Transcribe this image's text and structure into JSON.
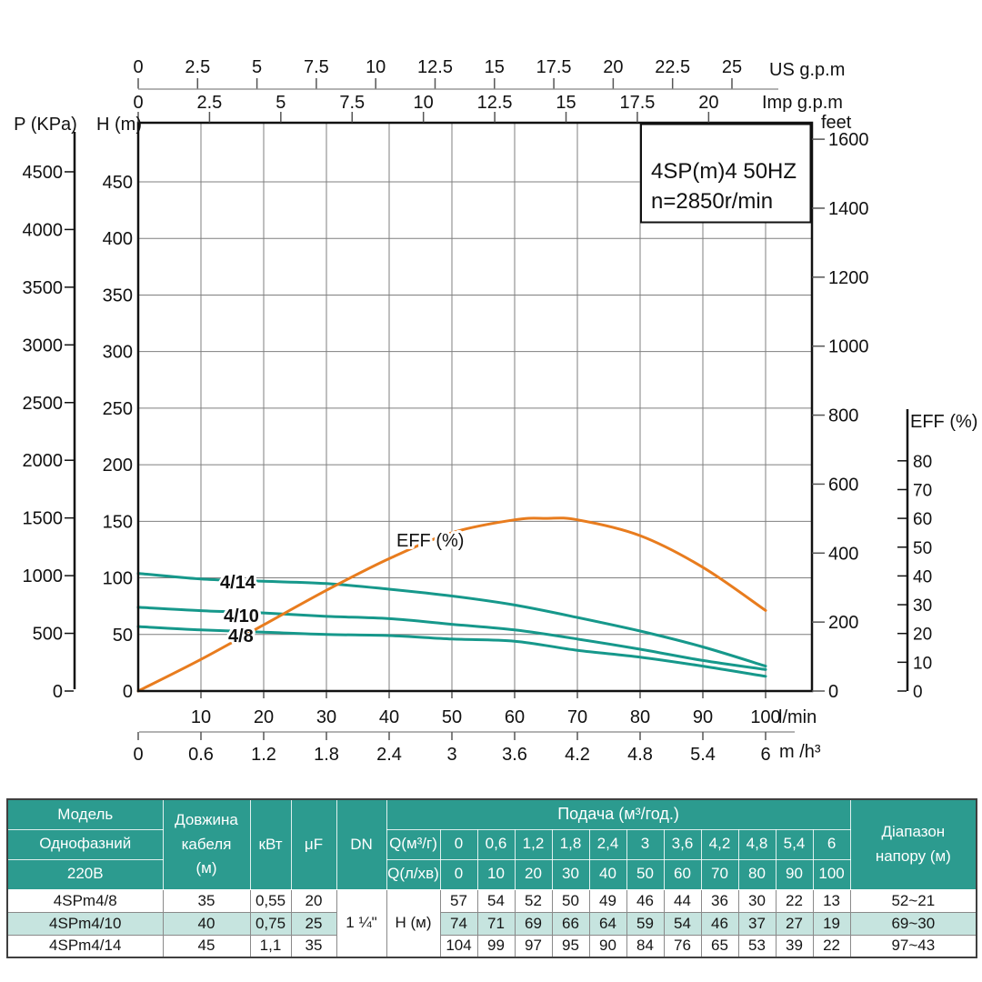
{
  "chart_data": {
    "type": "line",
    "title": "4SP(m)4  50HZ",
    "subtitle": "n=2850r/min",
    "x": [
      0,
      10,
      20,
      30,
      40,
      50,
      60,
      70,
      80,
      90,
      100
    ],
    "xlim": [
      0,
      100
    ],
    "ylim": [
      0,
      450
    ],
    "grid": true,
    "series": [
      {
        "name": "4/14",
        "values": [
          104,
          99,
          97,
          95,
          90,
          84,
          76,
          65,
          53,
          39,
          22
        ]
      },
      {
        "name": "4/10",
        "values": [
          74,
          71,
          69,
          66,
          64,
          59,
          54,
          46,
          37,
          27,
          19
        ]
      },
      {
        "name": "4/8",
        "values": [
          57,
          54,
          52,
          50,
          49,
          46,
          44,
          36,
          30,
          22,
          13
        ]
      }
    ],
    "efficiency": {
      "label": "EFF (%)",
      "x": [
        0,
        10,
        20,
        30,
        40,
        50,
        60,
        65,
        70,
        80,
        90,
        100
      ],
      "values": [
        0,
        11,
        23,
        35,
        46,
        55,
        59.5,
        60,
        59.5,
        54,
        43,
        28
      ]
    },
    "axes": {
      "p": {
        "label": "P (KPa)",
        "ticks": [
          0,
          500,
          1000,
          1500,
          2000,
          2500,
          3000,
          3500,
          4000,
          4500
        ]
      },
      "h": {
        "label": "H (m)",
        "ticks": [
          0,
          50,
          100,
          150,
          200,
          250,
          300,
          350,
          400,
          450
        ]
      },
      "feet": {
        "label": "feet",
        "ticks": [
          0,
          200,
          400,
          600,
          800,
          1000,
          1200,
          1400,
          1600
        ]
      },
      "us_gpm": {
        "label": "US g.p.m",
        "ticks": [
          0,
          2.5,
          5,
          7.5,
          10,
          12.5,
          15,
          17.5,
          20,
          22.5,
          25
        ]
      },
      "imp_gpm": {
        "label": "Imp g.p.m",
        "ticks": [
          0,
          2.5,
          5,
          7.5,
          10,
          12.5,
          15,
          17.5,
          20
        ]
      },
      "lmin": {
        "label": "l/min",
        "ticks": [
          10,
          20,
          30,
          40,
          50,
          60,
          70,
          80,
          90,
          100
        ]
      },
      "m3h": {
        "label": "m /h³",
        "ticks": [
          0,
          0.6,
          1.2,
          1.8,
          2.4,
          3,
          3.6,
          4.2,
          4.8,
          5.4,
          6
        ]
      },
      "eff": {
        "label": "EFF (%)",
        "ticks": [
          0,
          10,
          20,
          30,
          40,
          50,
          60,
          70,
          80
        ]
      }
    },
    "colors": {
      "head_curves": "#16988b",
      "eff_curve": "#e87c1e",
      "grid": "#7f7f7f",
      "axis_light": "#9a9a9a",
      "tick": "#555555",
      "ink": "#111111"
    }
  },
  "table": {
    "header": {
      "model": "Модель",
      "phase": "Однофазний",
      "voltage": "220В",
      "cable_lines": [
        "Довжина",
        "кабеля",
        "(м)"
      ],
      "power": "кВт",
      "capacitor": "μF",
      "dn": "DN",
      "flow_title": "Подача (м³/год.)",
      "q_m3_label": "Q(м³/г)",
      "q_lmin_label": "Q(л/хв)",
      "q_m3_values": [
        "0",
        "0,6",
        "1,2",
        "1,8",
        "2,4",
        "3",
        "3,6",
        "4,2",
        "4,8",
        "5,4",
        "6"
      ],
      "q_lmin_values": [
        "0",
        "10",
        "20",
        "30",
        "40",
        "50",
        "60",
        "70",
        "80",
        "90",
        "100"
      ],
      "range_lines": [
        "Діапазон",
        "напору (м)"
      ]
    },
    "dn_value": "1 ¼\"",
    "head_unit": "Н (м)",
    "rows": [
      {
        "model": "4SPm4/8",
        "cable": "35",
        "power": "0,55",
        "capacitor": "20",
        "heads": [
          "57",
          "54",
          "52",
          "50",
          "49",
          "46",
          "44",
          "36",
          "30",
          "22",
          "13"
        ],
        "range": "52~21",
        "highlight": false
      },
      {
        "model": "4SPm4/10",
        "cable": "40",
        "power": "0,75",
        "capacitor": "25",
        "heads": [
          "74",
          "71",
          "69",
          "66",
          "64",
          "59",
          "54",
          "46",
          "37",
          "27",
          "19"
        ],
        "range": "69~30",
        "highlight": true
      },
      {
        "model": "4SPm4/14",
        "cable": "45",
        "power": "1,1",
        "capacitor": "35",
        "heads": [
          "104",
          "99",
          "97",
          "95",
          "90",
          "84",
          "76",
          "65",
          "53",
          "39",
          "22"
        ],
        "range": "97~43",
        "highlight": false
      }
    ],
    "colors": {
      "header_bg": "#2c9b8f",
      "highlight_bg": "#c6e4df",
      "header_text": "#ffffff"
    }
  }
}
